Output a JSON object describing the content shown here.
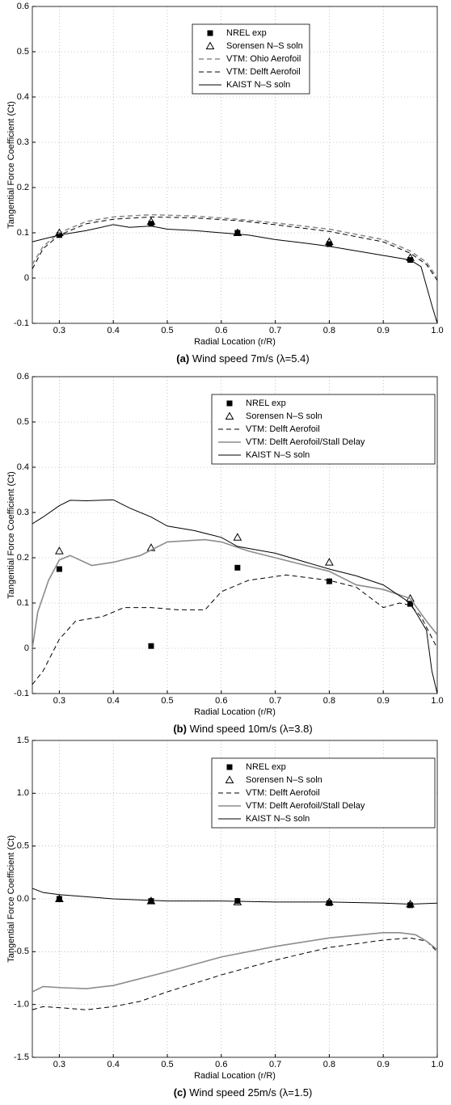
{
  "chart_data": [
    {
      "type": "line",
      "label": "(a)",
      "caption": "Wind speed 7m/s (λ=5.4)",
      "xlabel": "Radial Location (r/R)",
      "ylabel": "Tangential Force Coefficient (Ct)",
      "xlim": [
        0.25,
        1
      ],
      "ylim": [
        -0.1,
        0.6
      ],
      "grid": true,
      "legend": "upper center",
      "xticks": [
        0.3,
        0.4,
        0.5,
        0.6,
        0.7,
        0.8,
        0.9,
        {
          "value": 1,
          "label": "1.0"
        }
      ],
      "yticks": [
        -0.1,
        0,
        0.1,
        0.2,
        0.3,
        0.4,
        0.5,
        0.6
      ],
      "series": [
        {
          "name": "NREL exp",
          "color": "#000000",
          "marker": "square",
          "x": [
            0.3,
            0.47,
            0.63,
            0.8,
            0.95
          ],
          "values": [
            0.095,
            0.12,
            0.1,
            0.075,
            0.04
          ]
        },
        {
          "name": "Sorensen N–S soln",
          "color": "#000000",
          "marker": "triangle",
          "x": [
            0.3,
            0.47,
            0.63,
            0.8,
            0.95
          ],
          "values": [
            0.1,
            0.125,
            0.1,
            0.08,
            0.045
          ]
        },
        {
          "name": "VTM: Ohio Aerofoil",
          "color": "#8c8c8c",
          "dash": "dashed",
          "x": [
            0.25,
            0.27,
            0.3,
            0.35,
            0.4,
            0.47,
            0.55,
            0.63,
            0.7,
            0.8,
            0.9,
            0.95,
            0.98,
            1.0
          ],
          "values": [
            0.03,
            0.07,
            0.1,
            0.125,
            0.135,
            0.14,
            0.137,
            0.13,
            0.122,
            0.108,
            0.085,
            0.06,
            0.035,
            0.0
          ]
        },
        {
          "name": "VTM: Delft Aerofoil",
          "color": "#000000",
          "dash": "dashed",
          "x": [
            0.25,
            0.27,
            0.3,
            0.35,
            0.4,
            0.47,
            0.55,
            0.63,
            0.7,
            0.8,
            0.9,
            0.95,
            0.98,
            1.0
          ],
          "values": [
            0.02,
            0.065,
            0.095,
            0.12,
            0.13,
            0.135,
            0.133,
            0.127,
            0.118,
            0.103,
            0.08,
            0.055,
            0.03,
            -0.005
          ]
        },
        {
          "name": "KAIST N–S soln",
          "color": "#000000",
          "dash": "solid",
          "x": [
            0.25,
            0.3,
            0.35,
            0.4,
            0.43,
            0.47,
            0.5,
            0.55,
            0.6,
            0.65,
            0.7,
            0.75,
            0.8,
            0.85,
            0.9,
            0.95,
            0.97,
            0.99,
            1.0
          ],
          "values": [
            0.08,
            0.095,
            0.105,
            0.118,
            0.112,
            0.115,
            0.108,
            0.105,
            0.1,
            0.095,
            0.085,
            0.078,
            0.07,
            0.06,
            0.05,
            0.04,
            0.025,
            -0.06,
            -0.1
          ]
        }
      ]
    },
    {
      "type": "line",
      "label": "(b)",
      "caption": "Wind speed 10m/s (λ=3.8)",
      "xlabel": "Radial Location (r/R)",
      "ylabel": "Tangential Force Coefficient (Ct)",
      "xlim": [
        0.25,
        1
      ],
      "ylim": [
        -0.1,
        0.6
      ],
      "grid": true,
      "legend": "upper right",
      "xticks": [
        0.3,
        0.4,
        0.5,
        0.6,
        0.7,
        0.8,
        0.9,
        {
          "value": 1,
          "label": "1.0"
        }
      ],
      "yticks": [
        -0.1,
        0,
        0.1,
        0.2,
        0.3,
        0.4,
        0.5,
        0.6
      ],
      "series": [
        {
          "name": "NREL exp",
          "color": "#000000",
          "marker": "square",
          "x": [
            0.3,
            0.47,
            0.63,
            0.8,
            0.95
          ],
          "values": [
            0.175,
            0.005,
            0.178,
            0.148,
            0.098
          ]
        },
        {
          "name": "Sorensen N–S soln",
          "color": "#000000",
          "marker": "triangle",
          "x": [
            0.3,
            0.47,
            0.63,
            0.8,
            0.95
          ],
          "values": [
            0.215,
            0.222,
            0.245,
            0.19,
            0.11
          ]
        },
        {
          "name": "VTM: Delft Aerofoil",
          "color": "#000000",
          "dash": "dashed",
          "x": [
            0.25,
            0.27,
            0.3,
            0.33,
            0.38,
            0.42,
            0.47,
            0.52,
            0.57,
            0.6,
            0.65,
            0.72,
            0.8,
            0.85,
            0.9,
            0.93,
            0.95,
            0.97,
            1.0
          ],
          "values": [
            -0.08,
            -0.05,
            0.02,
            0.06,
            0.07,
            0.09,
            0.09,
            0.085,
            0.085,
            0.125,
            0.15,
            0.162,
            0.15,
            0.135,
            0.09,
            0.1,
            0.095,
            0.07,
            0.0
          ]
        },
        {
          "name": "VTM: Delft Aerofoil/Stall Delay",
          "color": "#8c8c8c",
          "dash": "solid",
          "x": [
            0.25,
            0.26,
            0.28,
            0.3,
            0.32,
            0.36,
            0.4,
            0.45,
            0.5,
            0.57,
            0.6,
            0.65,
            0.7,
            0.8,
            0.85,
            0.9,
            0.95,
            0.98,
            1.0
          ],
          "values": [
            0.0,
            0.08,
            0.15,
            0.195,
            0.205,
            0.183,
            0.19,
            0.205,
            0.235,
            0.24,
            0.235,
            0.215,
            0.2,
            0.17,
            0.14,
            0.13,
            0.11,
            0.06,
            0.03
          ]
        },
        {
          "name": "KAIST N–S soln",
          "color": "#000000",
          "dash": "solid",
          "x": [
            0.25,
            0.27,
            0.3,
            0.32,
            0.35,
            0.4,
            0.43,
            0.47,
            0.5,
            0.55,
            0.6,
            0.63,
            0.7,
            0.8,
            0.85,
            0.9,
            0.95,
            0.98,
            0.99,
            1.0
          ],
          "values": [
            0.275,
            0.29,
            0.315,
            0.327,
            0.326,
            0.328,
            0.31,
            0.29,
            0.27,
            0.26,
            0.245,
            0.225,
            0.21,
            0.175,
            0.16,
            0.14,
            0.1,
            0.04,
            -0.05,
            -0.1
          ]
        }
      ]
    },
    {
      "type": "line",
      "label": "(c)",
      "caption": "Wind speed 25m/s (λ=1.5)",
      "xlabel": "Radial Location (r/R)",
      "ylabel": "Tangential Force Coefficient (Ct)",
      "xlim": [
        0.25,
        1
      ],
      "ylim": [
        -1.5,
        1.5
      ],
      "grid": true,
      "legend": "upper right",
      "xticks": [
        0.3,
        0.4,
        0.5,
        0.6,
        0.7,
        0.8,
        0.9,
        {
          "value": 1,
          "label": "1.0"
        }
      ],
      "yticks": [
        -1.5,
        {
          "value": -1,
          "label": "-1.0"
        },
        -0.5,
        {
          "value": 0,
          "label": "0.0"
        },
        0.5,
        {
          "value": 1,
          "label": "1.0"
        },
        1.5
      ],
      "series": [
        {
          "name": "NREL exp",
          "color": "#000000",
          "marker": "square",
          "x": [
            0.3,
            0.47,
            0.63,
            0.8,
            0.95
          ],
          "values": [
            0.0,
            -0.02,
            -0.02,
            -0.04,
            -0.06
          ]
        },
        {
          "name": "Sorensen N–S soln",
          "color": "#000000",
          "marker": "triangle",
          "x": [
            0.3,
            0.47,
            0.63,
            0.8,
            0.95
          ],
          "values": [
            0.0,
            -0.02,
            -0.03,
            -0.03,
            -0.05
          ]
        },
        {
          "name": "VTM: Delft Aerofoil",
          "color": "#000000",
          "dash": "dashed",
          "x": [
            0.25,
            0.27,
            0.3,
            0.35,
            0.4,
            0.45,
            0.5,
            0.6,
            0.7,
            0.8,
            0.9,
            0.95,
            0.98,
            1.0
          ],
          "values": [
            -1.05,
            -1.02,
            -1.03,
            -1.05,
            -1.02,
            -0.97,
            -0.88,
            -0.72,
            -0.58,
            -0.46,
            -0.39,
            -0.37,
            -0.4,
            -0.5
          ]
        },
        {
          "name": "VTM: Delft Aerofoil/Stall Delay",
          "color": "#8c8c8c",
          "dash": "solid",
          "x": [
            0.25,
            0.27,
            0.3,
            0.35,
            0.4,
            0.5,
            0.6,
            0.7,
            0.8,
            0.9,
            0.93,
            0.96,
            0.98,
            1.0
          ],
          "values": [
            -0.88,
            -0.83,
            -0.84,
            -0.85,
            -0.82,
            -0.69,
            -0.55,
            -0.45,
            -0.37,
            -0.32,
            -0.32,
            -0.34,
            -0.4,
            -0.48
          ]
        },
        {
          "name": "KAIST N–S soln",
          "color": "#000000",
          "dash": "solid",
          "x": [
            0.25,
            0.27,
            0.3,
            0.35,
            0.4,
            0.5,
            0.6,
            0.7,
            0.8,
            0.9,
            0.95,
            1.0
          ],
          "values": [
            0.1,
            0.06,
            0.04,
            0.02,
            0.0,
            -0.02,
            -0.02,
            -0.03,
            -0.03,
            -0.04,
            -0.05,
            -0.04
          ]
        }
      ]
    }
  ]
}
